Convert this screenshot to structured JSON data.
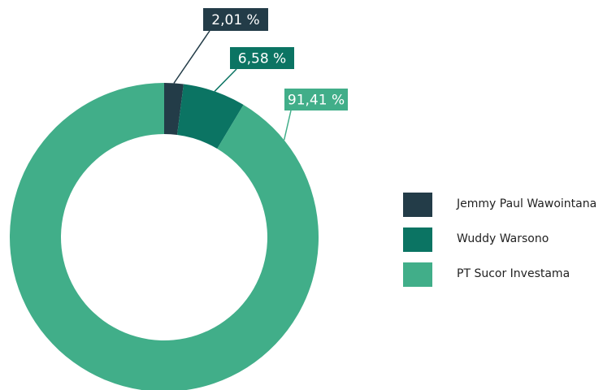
{
  "chart_data": {
    "type": "pie",
    "categories": [
      "Jemmy Paul Wawointana",
      "Wuddy Warsono",
      "PT Sucor Investama"
    ],
    "values": [
      2.01,
      6.58,
      91.41
    ],
    "value_labels": [
      "2,01 %",
      "6,58 %",
      "91,41 %"
    ],
    "colors": [
      "#233c48",
      "#0b7463",
      "#41ae89"
    ],
    "donut": true,
    "legend": "right"
  }
}
